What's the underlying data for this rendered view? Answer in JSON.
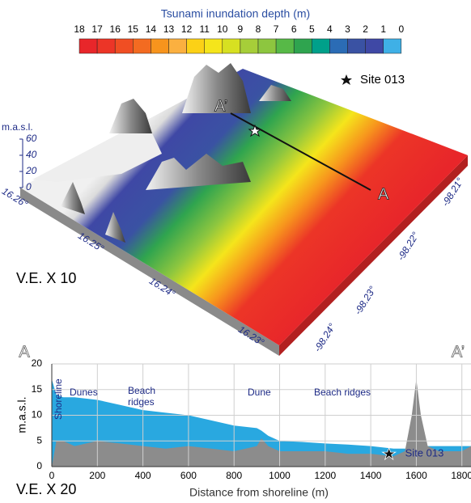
{
  "colorbar": {
    "title": "Tsunami inundation depth (m)",
    "labels": [
      18,
      17,
      16,
      15,
      14,
      13,
      12,
      11,
      10,
      9,
      8,
      7,
      6,
      5,
      4,
      3,
      2,
      1,
      0
    ],
    "colors": [
      "#e8262a",
      "#ec3527",
      "#f04e23",
      "#f36b21",
      "#f7941d",
      "#fbb040",
      "#fcd116",
      "#f5e51b",
      "#d7e021",
      "#a6ce39",
      "#8dc63f",
      "#57b947",
      "#2fa44f",
      "#00a08a",
      "#2b6cb5",
      "#3a52a3",
      "#3f48a5",
      "#3fb0e6"
    ]
  },
  "map": {
    "legend_label": "Site 013",
    "profile_start": "A",
    "profile_end": "A’",
    "z_axis": {
      "label": "m.a.s.l.",
      "ticks": [
        60,
        40,
        20,
        0
      ]
    },
    "lat_labels": [
      "16.26°",
      "16.25°",
      "16.24°",
      "16.23°"
    ],
    "lon_labels": [
      "-98.21°",
      "-98.22°",
      "-98.23°",
      "-98.24°"
    ],
    "ve_label": "V.E. X 10"
  },
  "chart_data": {
    "type": "area",
    "x_label": "Distance from shoreline (m)",
    "y_label": "m.a.s.l.",
    "profile_start": "A",
    "profile_end": "A’",
    "ve_label": "V.E. X 20",
    "annotations": [
      "Shoreline",
      "Dunes",
      "Beach ridges",
      "Dune",
      "Beach ridges"
    ],
    "x": [
      0,
      20,
      50,
      100,
      200,
      300,
      400,
      500,
      600,
      700,
      800,
      900,
      920,
      950,
      1000,
      1100,
      1200,
      1300,
      1400,
      1500,
      1550,
      1580,
      1600,
      1620,
      1650,
      1700,
      1800,
      1840
    ],
    "series": [
      {
        "color": "#29a8e0",
        "values": [
          17,
          14,
          13.5,
          13.5,
          13,
          12,
          11,
          10.5,
          10,
          9,
          8,
          7.5,
          7,
          6,
          5,
          4.8,
          4.5,
          4.3,
          4,
          3.5,
          3.5,
          3.5,
          3.5,
          3.5,
          4,
          4,
          4,
          4
        ]
      },
      {
        "color": "#8c8c8c",
        "values": [
          0,
          5,
          5,
          4,
          5,
          4.5,
          4,
          3.5,
          4,
          3.5,
          3,
          4,
          5.5,
          4,
          3,
          3,
          3,
          2.5,
          2.5,
          2,
          3,
          10,
          17,
          10,
          4,
          3,
          3,
          4
        ]
      }
    ],
    "site": {
      "label": "Site 013",
      "x": 1480,
      "y": 2.5
    },
    "xlim": [
      0,
      1840
    ],
    "xticks": [
      0,
      200,
      400,
      600,
      800,
      1000,
      1200,
      1400,
      1600,
      1800
    ],
    "ylim": [
      0,
      20
    ],
    "yticks": [
      0,
      5,
      10,
      15,
      20
    ],
    "grid": true
  }
}
